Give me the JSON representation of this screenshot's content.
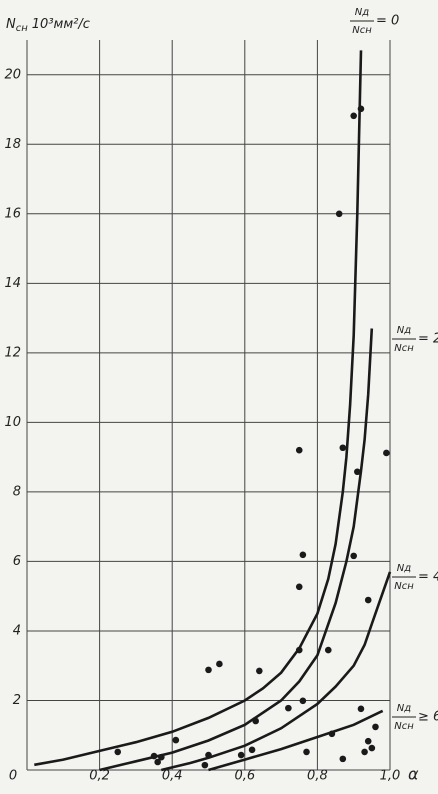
{
  "chart_data": {
    "type": "scatter",
    "y_label": {
      "symbol": "N",
      "subscript": "сн",
      "unit": "10³мм²/с"
    },
    "x_label": "α",
    "xlim": [
      0,
      1.0
    ],
    "ylim": [
      0,
      21
    ],
    "xticks": [
      {
        "value": 0,
        "label": "0"
      },
      {
        "value": 0.2,
        "label": "0,2"
      },
      {
        "value": 0.4,
        "label": "0,4"
      },
      {
        "value": 0.6,
        "label": "0,6"
      },
      {
        "value": 0.8,
        "label": "0,8"
      },
      {
        "value": 1.0,
        "label": "1,0"
      }
    ],
    "yticks": [
      2,
      4,
      6,
      8,
      10,
      12,
      14,
      16,
      18,
      20
    ],
    "grid": true,
    "series": [
      {
        "color": "#1a1a1a",
        "x": [
          0.25,
          0.35,
          0.36,
          0.37,
          0.41,
          0.49,
          0.5,
          0.5,
          0.53,
          0.59,
          0.62,
          0.63,
          0.64,
          0.72,
          0.75,
          0.75,
          0.75,
          0.76,
          0.76,
          0.77,
          0.83,
          0.84,
          0.87,
          0.86,
          0.87,
          0.9,
          0.9,
          0.91,
          0.92,
          0.92,
          0.93,
          0.94,
          0.95,
          0.94,
          0.96,
          0.99
        ],
        "values": [
          0.52,
          0.4,
          0.23,
          0.37,
          0.86,
          0.14,
          0.43,
          2.88,
          3.05,
          0.43,
          0.58,
          1.41,
          2.85,
          1.78,
          9.2,
          5.27,
          3.45,
          6.19,
          1.99,
          0.52,
          3.45,
          1.04,
          0.32,
          16.0,
          9.27,
          6.16,
          18.82,
          8.58,
          19.02,
          1.76,
          0.52,
          0.83,
          0.63,
          4.89,
          1.24,
          9.12
        ]
      }
    ],
    "curves": [
      {
        "numerator": "Nд",
        "denominator": "Nсн",
        "relation": "= 0",
        "x": [
          0.02,
          0.1,
          0.2,
          0.3,
          0.4,
          0.5,
          0.6,
          0.65,
          0.7,
          0.75,
          0.8,
          0.83,
          0.85,
          0.87,
          0.88,
          0.89,
          0.9,
          0.91,
          0.92
        ],
        "values": [
          0.15,
          0.3,
          0.55,
          0.8,
          1.1,
          1.5,
          2.0,
          2.35,
          2.8,
          3.5,
          4.5,
          5.5,
          6.5,
          8.0,
          9.0,
          10.5,
          12.5,
          16.0,
          20.7
        ]
      },
      {
        "numerator": "Nд",
        "denominator": "Nсн",
        "relation": "= 2",
        "x": [
          0.2,
          0.3,
          0.4,
          0.5,
          0.6,
          0.7,
          0.75,
          0.8,
          0.85,
          0.88,
          0.9,
          0.92,
          0.93,
          0.94,
          0.95
        ],
        "values": [
          0.0,
          0.25,
          0.5,
          0.85,
          1.3,
          2.0,
          2.55,
          3.3,
          4.8,
          6.0,
          7.0,
          8.6,
          9.5,
          10.8,
          12.7
        ]
      },
      {
        "numerator": "Nд",
        "denominator": "Nсн",
        "relation": "= 4",
        "x": [
          0.37,
          0.45,
          0.5,
          0.6,
          0.7,
          0.8,
          0.85,
          0.9,
          0.93,
          0.95,
          0.97,
          1.0
        ],
        "values": [
          0.0,
          0.2,
          0.35,
          0.7,
          1.2,
          1.9,
          2.4,
          3.0,
          3.6,
          4.2,
          4.8,
          5.7
        ]
      },
      {
        "numerator": "Nд",
        "denominator": "Nсн",
        "relation": "≥ 6",
        "x": [
          0.5,
          0.6,
          0.7,
          0.8,
          0.9,
          0.98
        ],
        "values": [
          0.0,
          0.3,
          0.6,
          0.95,
          1.3,
          1.7
        ]
      }
    ]
  }
}
